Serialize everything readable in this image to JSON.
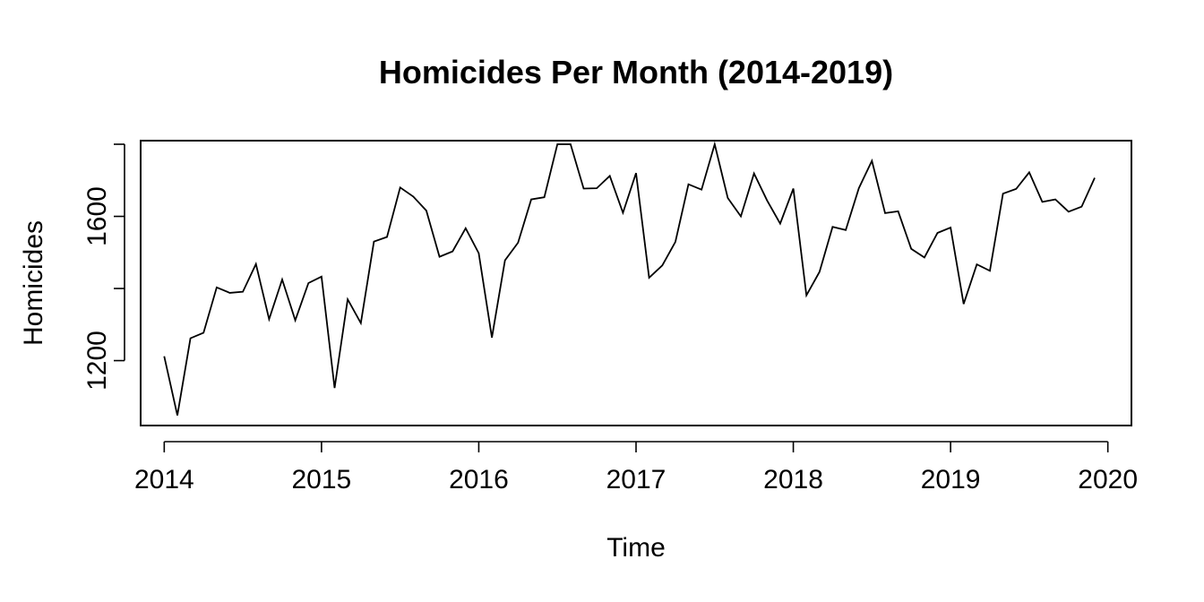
{
  "chart_data": {
    "type": "line",
    "title": "Homicides Per Month (2014-2019)",
    "xlabel": "Time",
    "ylabel": "Homicides",
    "xlim": [
      2013.85,
      2020.15
    ],
    "ylim": [
      1020,
      1810
    ],
    "x_ticks": [
      2014,
      2015,
      2016,
      2017,
      2018,
      2019,
      2020
    ],
    "y_ticks": [
      1200,
      1400,
      1600,
      1800
    ],
    "y_tick_labels": [
      "1200",
      "",
      "1600",
      ""
    ],
    "grid": false,
    "series": [
      {
        "start": 2014,
        "frequency": 12,
        "values": [
          1212,
          1048,
          1262,
          1277,
          1403,
          1388,
          1391,
          1468,
          1315,
          1425,
          1312,
          1415,
          1433,
          1124,
          1370,
          1304,
          1530,
          1543,
          1680,
          1655,
          1616,
          1488,
          1503,
          1567,
          1498,
          1264,
          1478,
          1527,
          1647,
          1653,
          1800,
          1800,
          1677,
          1678,
          1712,
          1610,
          1720,
          1430,
          1464,
          1529,
          1689,
          1674,
          1800,
          1651,
          1600,
          1719,
          1644,
          1580,
          1677,
          1381,
          1446,
          1571,
          1562,
          1678,
          1754,
          1609,
          1614,
          1510,
          1486,
          1554,
          1569,
          1357,
          1467,
          1449,
          1663,
          1676,
          1722,
          1640,
          1647,
          1613,
          1627,
          1707
        ]
      }
    ]
  }
}
